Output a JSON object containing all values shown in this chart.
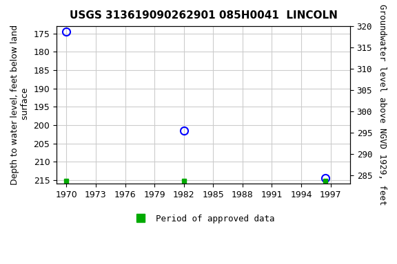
{
  "title": "USGS 313619090262901 085H0041  LINCOLN",
  "ylabel_left": "Depth to water level, feet below land\n surface",
  "ylabel_right": "Groundwater level above NGVD 1929, feet",
  "data_points": [
    {
      "year": 1970.0,
      "depth": 174.5
    },
    {
      "year": 1982.0,
      "depth": 201.5
    },
    {
      "year": 1996.5,
      "depth": 214.5
    }
  ],
  "green_markers": [
    {
      "year": 1970.0
    },
    {
      "year": 1982.0
    },
    {
      "year": 1996.5
    }
  ],
  "xlim": [
    1969,
    1999
  ],
  "xticks": [
    1970,
    1973,
    1976,
    1979,
    1982,
    1985,
    1988,
    1991,
    1994,
    1997
  ],
  "ylim_left_bottom": 216,
  "ylim_left_top": 173,
  "ylim_right_top": 320,
  "ylim_right_bottom": 283,
  "yticks_left": [
    175,
    180,
    185,
    190,
    195,
    200,
    205,
    210,
    215
  ],
  "yticks_right": [
    320,
    315,
    310,
    305,
    300,
    295,
    290,
    285
  ],
  "grid_color": "#cccccc",
  "point_color": "blue",
  "marker_size": 8,
  "background_color": "#ffffff",
  "legend_label": "Period of approved data",
  "legend_color": "#00aa00",
  "title_fontsize": 11,
  "label_fontsize": 9,
  "tick_fontsize": 9
}
